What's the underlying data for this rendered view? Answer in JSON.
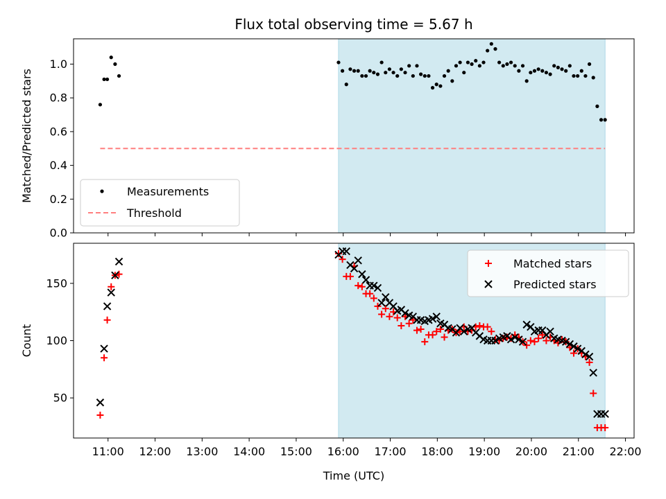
{
  "title": "Flux total observing time = 5.67 h",
  "xlabel": "Time (UTC)",
  "colors": {
    "measurement": "#000000",
    "threshold": "#ff7f7f",
    "window": "#add8e6",
    "matched": "#ff0000",
    "predicted": "#000000"
  },
  "chart_data": [
    {
      "type": "scatter",
      "ylabel": "Matched/Predicted stars",
      "xlim": [
        "10:16",
        "22:11"
      ],
      "ylim": [
        0,
        1.15
      ],
      "yticks": [
        0.0,
        0.2,
        0.4,
        0.6,
        0.8,
        1.0
      ],
      "xticks": [
        "11:00",
        "12:00",
        "13:00",
        "14:00",
        "15:00",
        "16:00",
        "17:00",
        "18:00",
        "19:00",
        "20:00",
        "21:00",
        "22:00"
      ],
      "legend": {
        "placement": "lower-left",
        "entries": [
          "Measurements",
          "Threshold"
        ]
      },
      "observing_window": [
        "15:54",
        "21:34"
      ],
      "threshold": {
        "value": 0.5,
        "x_range": [
          "10:50",
          "21:34"
        ],
        "style": "dashed"
      },
      "series": [
        {
          "name": "Measurements",
          "marker": "dot",
          "x": [
            "10:50",
            "10:55",
            "10:59",
            "11:04",
            "11:09",
            "11:14",
            "15:54",
            "15:59",
            "16:04",
            "16:09",
            "16:14",
            "16:19",
            "16:24",
            "16:29",
            "16:34",
            "16:39",
            "16:44",
            "16:49",
            "16:54",
            "16:59",
            "17:04",
            "17:09",
            "17:14",
            "17:19",
            "17:24",
            "17:29",
            "17:34",
            "17:39",
            "17:44",
            "17:49",
            "17:54",
            "17:59",
            "18:04",
            "18:09",
            "18:14",
            "18:19",
            "18:24",
            "18:29",
            "18:34",
            "18:39",
            "18:44",
            "18:49",
            "18:54",
            "18:59",
            "19:04",
            "19:09",
            "19:14",
            "19:19",
            "19:24",
            "19:29",
            "19:34",
            "19:39",
            "19:44",
            "19:49",
            "19:54",
            "19:59",
            "20:04",
            "20:09",
            "20:14",
            "20:19",
            "20:24",
            "20:29",
            "20:34",
            "20:39",
            "20:44",
            "20:49",
            "20:54",
            "20:59",
            "21:04",
            "21:09",
            "21:14",
            "21:19",
            "21:24",
            "21:29",
            "21:34"
          ],
          "y": [
            0.76,
            0.91,
            0.91,
            1.04,
            1.0,
            0.93,
            1.01,
            0.96,
            0.88,
            0.97,
            0.96,
            0.96,
            0.93,
            0.93,
            0.96,
            0.95,
            0.94,
            1.01,
            0.95,
            0.97,
            0.95,
            0.93,
            0.97,
            0.95,
            0.99,
            0.93,
            0.99,
            0.94,
            0.93,
            0.93,
            0.86,
            0.88,
            0.87,
            0.93,
            0.96,
            0.9,
            0.99,
            1.01,
            0.95,
            1.01,
            1.0,
            1.02,
            0.99,
            1.01,
            1.08,
            1.12,
            1.09,
            1.01,
            0.99,
            1.0,
            1.01,
            0.99,
            0.96,
            0.99,
            0.9,
            0.95,
            0.96,
            0.97,
            0.96,
            0.95,
            0.94,
            0.99,
            0.98,
            0.97,
            0.96,
            0.99,
            0.93,
            0.93,
            0.96,
            0.93,
            1.0,
            0.92,
            0.75,
            0.67,
            0.67
          ]
        },
        {
          "name": "Threshold",
          "style": "dashed-line",
          "y": [
            0.5
          ]
        }
      ]
    },
    {
      "type": "scatter",
      "ylabel": "Count",
      "xlim": [
        "10:16",
        "22:11"
      ],
      "ylim": [
        15,
        185
      ],
      "yticks": [
        50,
        100,
        150
      ],
      "xticks": [
        "11:00",
        "12:00",
        "13:00",
        "14:00",
        "15:00",
        "16:00",
        "17:00",
        "18:00",
        "19:00",
        "20:00",
        "21:00",
        "22:00"
      ],
      "legend": {
        "placement": "upper-right",
        "entries": [
          "Matched stars",
          "Predicted stars"
        ]
      },
      "observing_window": [
        "15:54",
        "21:34"
      ],
      "series": [
        {
          "name": "Matched stars",
          "marker": "plus",
          "x": [
            "10:50",
            "10:55",
            "10:59",
            "11:04",
            "11:09",
            "11:14",
            "15:54",
            "15:59",
            "16:04",
            "16:09",
            "16:14",
            "16:19",
            "16:24",
            "16:29",
            "16:34",
            "16:39",
            "16:44",
            "16:49",
            "16:54",
            "16:59",
            "17:04",
            "17:09",
            "17:14",
            "17:19",
            "17:24",
            "17:29",
            "17:34",
            "17:39",
            "17:44",
            "17:49",
            "17:54",
            "17:59",
            "18:04",
            "18:09",
            "18:14",
            "18:19",
            "18:24",
            "18:29",
            "18:34",
            "18:39",
            "18:44",
            "18:49",
            "18:54",
            "18:59",
            "19:04",
            "19:09",
            "19:14",
            "19:19",
            "19:24",
            "19:29",
            "19:34",
            "19:39",
            "19:44",
            "19:49",
            "19:54",
            "19:59",
            "20:04",
            "20:09",
            "20:14",
            "20:19",
            "20:24",
            "20:29",
            "20:34",
            "20:39",
            "20:44",
            "20:49",
            "20:54",
            "20:59",
            "21:04",
            "21:09",
            "21:14",
            "21:19",
            "21:24",
            "21:29",
            "21:34"
          ],
          "y": [
            35,
            85,
            118,
            147,
            157,
            158,
            176,
            171,
            156,
            156,
            165,
            148,
            147,
            141,
            141,
            137,
            130,
            123,
            128,
            121,
            125,
            120,
            113,
            121,
            115,
            118,
            109,
            110,
            99,
            105,
            105,
            108,
            110,
            103,
            109,
            110,
            107,
            108,
            112,
            108,
            109,
            112,
            113,
            112,
            112,
            108,
            101,
            100,
            102,
            103,
            102,
            105,
            103,
            99,
            96,
            100,
            99,
            102,
            105,
            100,
            103,
            100,
            98,
            101,
            99,
            94,
            89,
            93,
            89,
            86,
            81,
            54,
            24,
            24,
            24
          ]
        },
        {
          "name": "Predicted stars",
          "marker": "x",
          "x": [
            "10:50",
            "10:55",
            "10:59",
            "11:04",
            "11:09",
            "11:14",
            "15:54",
            "15:59",
            "16:04",
            "16:09",
            "16:14",
            "16:19",
            "16:24",
            "16:29",
            "16:34",
            "16:39",
            "16:44",
            "16:49",
            "16:54",
            "16:59",
            "17:04",
            "17:09",
            "17:14",
            "17:19",
            "17:24",
            "17:29",
            "17:34",
            "17:39",
            "17:44",
            "17:49",
            "17:54",
            "17:59",
            "18:04",
            "18:09",
            "18:14",
            "18:19",
            "18:24",
            "18:29",
            "18:34",
            "18:39",
            "18:44",
            "18:49",
            "18:54",
            "18:59",
            "19:04",
            "19:09",
            "19:14",
            "19:19",
            "19:24",
            "19:29",
            "19:34",
            "19:39",
            "19:44",
            "19:49",
            "19:54",
            "19:59",
            "20:04",
            "20:09",
            "20:14",
            "20:19",
            "20:24",
            "20:29",
            "20:34",
            "20:39",
            "20:44",
            "20:49",
            "20:54",
            "20:59",
            "21:04",
            "21:09",
            "21:14",
            "21:19",
            "21:24",
            "21:29",
            "21:34"
          ],
          "y": [
            46,
            93,
            130,
            142,
            157,
            169,
            175,
            178,
            178,
            166,
            163,
            170,
            158,
            153,
            148,
            148,
            146,
            133,
            138,
            133,
            130,
            126,
            127,
            124,
            122,
            121,
            118,
            118,
            117,
            118,
            119,
            121,
            115,
            114,
            111,
            110,
            107,
            111,
            108,
            110,
            111,
            107,
            104,
            101,
            100,
            100,
            100,
            102,
            103,
            104,
            101,
            103,
            101,
            99,
            114,
            112,
            108,
            109,
            109,
            105,
            108,
            102,
            101,
            100,
            99,
            97,
            95,
            93,
            91,
            88,
            86,
            72,
            36,
            36,
            36
          ]
        }
      ]
    }
  ]
}
